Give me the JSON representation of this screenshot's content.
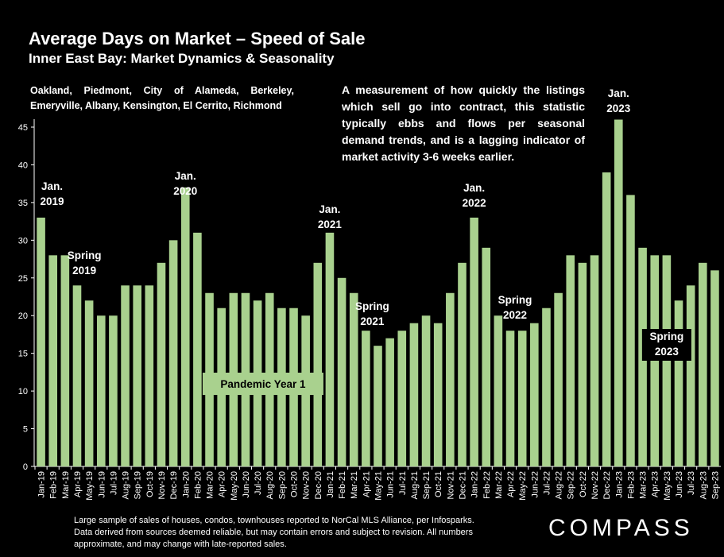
{
  "title": "Average Days on Market – Speed of Sale",
  "subtitle": "Inner East Bay: Market Dynamics & Seasonality",
  "cities": "Oakland, Piedmont, City of Alameda, Berkeley, Emeryville, Albany, Kensington, El Cerrito, Richmond",
  "description": "A measurement of how quickly the listings which sell go into contract, this statistic typically ebbs and flows per seasonal demand trends, and is a lagging indicator of market activity 3-6 weeks earlier.",
  "footnote": "Large sample of sales of houses, condos, townhouses reported to NorCal MLS Alliance, per Infosparks. Data derived from sources deemed reliable, but may contain errors and subject to revision. All numbers approximate, and may change with late-reported sales.",
  "logo": "COMPASS",
  "colors": {
    "bar": "#a9d18e",
    "background": "#000000",
    "text": "#ffffff"
  },
  "annotations": [
    {
      "lines": [
        "Jan.",
        "2019"
      ],
      "anchor_index": 0,
      "style": "plain"
    },
    {
      "lines": [
        "Spring",
        "2019"
      ],
      "anchor_index": 4,
      "style": "plain"
    },
    {
      "lines": [
        "Jan.",
        "2020"
      ],
      "anchor_index": 12,
      "style": "plain"
    },
    {
      "lines": [
        "Jan.",
        "2021"
      ],
      "anchor_index": 24,
      "style": "plain"
    },
    {
      "lines": [
        "Spring",
        "2021"
      ],
      "anchor_index": 27,
      "style": "plain"
    },
    {
      "lines": [
        "Jan.",
        "2022"
      ],
      "anchor_index": 36,
      "style": "plain"
    },
    {
      "lines": [
        "Spring",
        "2022"
      ],
      "anchor_index": 39,
      "style": "plain"
    },
    {
      "lines": [
        "Jan.",
        "2023"
      ],
      "anchor_index": 48,
      "style": "plain"
    },
    {
      "lines": [
        "Spring",
        "2023"
      ],
      "anchor_index": 52,
      "style": "boxed-dark"
    },
    {
      "lines": [
        "Pandemic Year 1"
      ],
      "anchor_index": 17,
      "style": "boxed-green"
    }
  ],
  "chart_data": {
    "type": "bar",
    "title": "Average Days on Market – Speed of Sale",
    "ylim": [
      0,
      45
    ],
    "yticks": [
      0,
      5,
      10,
      15,
      20,
      25,
      30,
      35,
      40,
      45
    ],
    "grid": false,
    "categories": [
      "Jan-19",
      "Feb-19",
      "Mar-19",
      "Apr-19",
      "May-19",
      "Jun-19",
      "Jul-19",
      "Aug-19",
      "Sep-19",
      "Oct-19",
      "Nov-19",
      "Dec-19",
      "Jan-20",
      "Feb-20",
      "Mar-20",
      "Apr-20",
      "May-20",
      "Jun-20",
      "Jul-20",
      "Aug-20",
      "Sep-20",
      "Oct-20",
      "Nov-20",
      "Dec-20",
      "Jan-21",
      "Feb-21",
      "Mar-21",
      "Apr-21",
      "May-21",
      "Jun-21",
      "Jul-21",
      "Aug-21",
      "Sep-21",
      "Oct-21",
      "Nov-21",
      "Dec-21",
      "Jan-22",
      "Feb-22",
      "Mar-22",
      "Apr-22",
      "May-22",
      "Jun-22",
      "Jul-22",
      "Aug-22",
      "Sep-22",
      "Oct-22",
      "Nov-22",
      "Dec-22",
      "Jan-23",
      "Feb-23",
      "Mar-23",
      "Apr-23",
      "May-23",
      "Jun-23",
      "Jul-23",
      "Aug-23",
      "Sep-23"
    ],
    "values": [
      33,
      28,
      28,
      24,
      22,
      20,
      20,
      24,
      24,
      24,
      27,
      30,
      37,
      31,
      23,
      21,
      23,
      23,
      22,
      23,
      21,
      21,
      20,
      27,
      31,
      25,
      23,
      18,
      16,
      17,
      18,
      19,
      20,
      19,
      23,
      27,
      33,
      29,
      20,
      18,
      18,
      19,
      21,
      23,
      28,
      27,
      28,
      39,
      46,
      36,
      29,
      28,
      28,
      22,
      24,
      27,
      26
    ]
  }
}
